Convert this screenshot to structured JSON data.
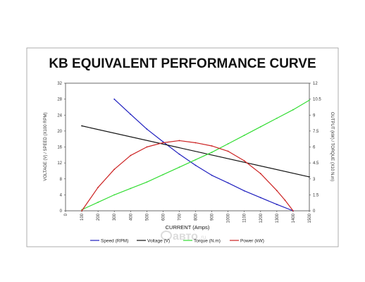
{
  "chart_data": {
    "type": "line",
    "title": "KB EQUIVALENT PERFORMANCE CURVE",
    "xlabel": "CURRENT (Amps)",
    "ylabel_left": "VOLTAGE (V) / SPEED (X100 RPM)",
    "ylabel_right": "OUTPUT (kW) / TORQUE (X10 N.m)",
    "xlim": [
      0,
      1500
    ],
    "ylim_left": [
      0,
      32
    ],
    "ylim_right": [
      0,
      12
    ],
    "x_ticks": [
      0,
      100,
      200,
      300,
      400,
      500,
      600,
      700,
      800,
      900,
      1000,
      1100,
      1200,
      1300,
      1400,
      1500
    ],
    "y_left_ticks": [
      0,
      4,
      8,
      12,
      16,
      20,
      24,
      28,
      32
    ],
    "y_right_ticks": [
      "0",
      "1.5",
      "3",
      "4.5",
      "6",
      "7.5",
      "9",
      "10.5",
      "12"
    ],
    "legend_position": "bottom",
    "grid": false,
    "series": [
      {
        "name": "Speed (RPM)",
        "axis": "left",
        "color": "#1f1fbf",
        "x": [
          300,
          400,
          500,
          600,
          700,
          800,
          900,
          1000,
          1100,
          1200,
          1300,
          1400
        ],
        "values": [
          28,
          24.2,
          20.5,
          17.3,
          14.2,
          11.4,
          8.9,
          7,
          5,
          3.3,
          1.6,
          0
        ]
      },
      {
        "name": "Voltage (V)",
        "axis": "left",
        "color": "#111111",
        "x": [
          100,
          1500
        ],
        "values": [
          21.3,
          8.5
        ]
      },
      {
        "name": "Torque (N.m)",
        "axis": "right",
        "color": "#33dd33",
        "x": [
          100,
          200,
          300,
          400,
          500,
          600,
          700,
          800,
          900,
          1000,
          1100,
          1200,
          1300,
          1400,
          1500
        ],
        "values": [
          0.1,
          0.8,
          1.5,
          2.1,
          2.7,
          3.4,
          4.1,
          4.8,
          5.5,
          6.3,
          7.1,
          7.9,
          8.7,
          9.5,
          10.4
        ]
      },
      {
        "name": "Power (kW)",
        "axis": "right",
        "color": "#cc2222",
        "x": [
          100,
          200,
          300,
          400,
          500,
          600,
          700,
          800,
          900,
          1000,
          1100,
          1200,
          1300,
          1350,
          1400
        ],
        "values": [
          0,
          2.2,
          3.9,
          5.2,
          6,
          6.4,
          6.6,
          6.4,
          6.1,
          5.6,
          4.7,
          3.5,
          1.9,
          1,
          0
        ]
      }
    ]
  },
  "watermark": {
    "text": "авто",
    "suffix": ".ru"
  }
}
